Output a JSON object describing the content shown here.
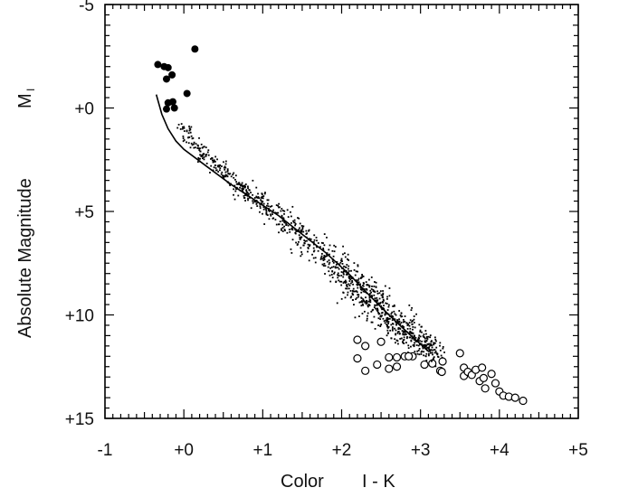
{
  "chart_data": {
    "type": "scatter",
    "title": "",
    "xlabel": "Color",
    "xlabel_quantity": "I - K",
    "ylabel": "Absolute Magnitude",
    "ylabel_symbol": "M",
    "ylabel_subscript": "I",
    "xlim": [
      -1,
      5
    ],
    "ylim": [
      15,
      -5
    ],
    "y_inverted": true,
    "grid": false,
    "x_ticks": [
      {
        "value": -1,
        "label": "-1"
      },
      {
        "value": 0,
        "label": "+0"
      },
      {
        "value": 1,
        "label": "+1"
      },
      {
        "value": 2,
        "label": "+2"
      },
      {
        "value": 3,
        "label": "+3"
      },
      {
        "value": 4,
        "label": "+4"
      },
      {
        "value": 5,
        "label": "+5"
      }
    ],
    "y_ticks": [
      {
        "value": -5,
        "label": "-5"
      },
      {
        "value": 0,
        "label": "+0"
      },
      {
        "value": 5,
        "label": "+5"
      },
      {
        "value": 10,
        "label": "+10"
      },
      {
        "value": 15,
        "label": "+15"
      }
    ],
    "series": [
      {
        "marker": "filled-circle",
        "color": "#000000",
        "points": [
          [
            -0.33,
            -2.1
          ],
          [
            -0.25,
            -2.0
          ],
          [
            -0.2,
            -1.95
          ],
          [
            -0.15,
            -1.6
          ],
          [
            -0.22,
            -1.4
          ],
          [
            0.14,
            -2.85
          ],
          [
            0.04,
            -0.7
          ],
          [
            -0.2,
            -0.25
          ],
          [
            -0.14,
            -0.3
          ],
          [
            -0.22,
            0.05
          ],
          [
            -0.12,
            0.0
          ]
        ]
      },
      {
        "marker": "open-circle",
        "color": "#000000",
        "points": [
          [
            2.2,
            11.2
          ],
          [
            2.3,
            11.5
          ],
          [
            2.5,
            11.3
          ],
          [
            2.2,
            12.1
          ],
          [
            2.3,
            12.7
          ],
          [
            2.45,
            12.4
          ],
          [
            2.6,
            12.05
          ],
          [
            2.7,
            12.05
          ],
          [
            2.8,
            12.0
          ],
          [
            2.9,
            12.0
          ],
          [
            2.6,
            12.6
          ],
          [
            2.7,
            12.5
          ],
          [
            2.85,
            12.0
          ],
          [
            3.05,
            12.4
          ],
          [
            3.15,
            12.35
          ],
          [
            3.25,
            12.7
          ],
          [
            3.27,
            12.75
          ],
          [
            3.28,
            12.25
          ],
          [
            3.5,
            11.85
          ],
          [
            3.55,
            12.55
          ],
          [
            3.55,
            12.95
          ],
          [
            3.6,
            12.75
          ],
          [
            3.65,
            12.9
          ],
          [
            3.7,
            12.65
          ],
          [
            3.75,
            13.2
          ],
          [
            3.8,
            13.05
          ],
          [
            3.82,
            13.55
          ],
          [
            3.78,
            12.55
          ],
          [
            3.9,
            12.85
          ],
          [
            3.95,
            13.3
          ],
          [
            4.0,
            13.7
          ],
          [
            4.05,
            13.9
          ],
          [
            4.12,
            13.95
          ],
          [
            4.2,
            14.0
          ],
          [
            4.3,
            14.15
          ]
        ]
      },
      {
        "marker": "line",
        "color": "#000000",
        "points": [
          [
            -0.35,
            -0.65
          ],
          [
            -0.28,
            0.3
          ],
          [
            -0.2,
            1.0
          ],
          [
            -0.1,
            1.6
          ],
          [
            0.0,
            2.0
          ],
          [
            0.3,
            2.85
          ],
          [
            0.6,
            3.7
          ],
          [
            0.9,
            4.45
          ],
          [
            1.2,
            5.2
          ],
          [
            1.5,
            6.1
          ],
          [
            1.8,
            7.0
          ],
          [
            2.1,
            8.05
          ],
          [
            2.35,
            9.05
          ],
          [
            2.6,
            10.0
          ],
          [
            2.85,
            10.9
          ],
          [
            3.1,
            11.75
          ]
        ]
      },
      {
        "marker": "small-dot",
        "color": "#000000",
        "description_of_density": "dense cloud following the line from (0,1) to (3.2,12)",
        "generator": {
          "path": [
            [
              -0.05,
              0.7,
              0.25
            ],
            [
              0.2,
              2.0,
              0.3
            ],
            [
              0.6,
              3.5,
              0.35
            ],
            [
              1.0,
              4.6,
              0.45
            ],
            [
              1.4,
              5.9,
              0.55
            ],
            [
              1.8,
              7.1,
              0.6
            ],
            [
              2.1,
              8.2,
              0.7
            ],
            [
              2.35,
              9.2,
              0.75
            ],
            [
              2.6,
              10.1,
              0.75
            ],
            [
              2.9,
              11.0,
              0.6
            ],
            [
              3.2,
              11.9,
              0.45
            ]
          ],
          "count": 1100,
          "seed": 7
        }
      }
    ]
  }
}
